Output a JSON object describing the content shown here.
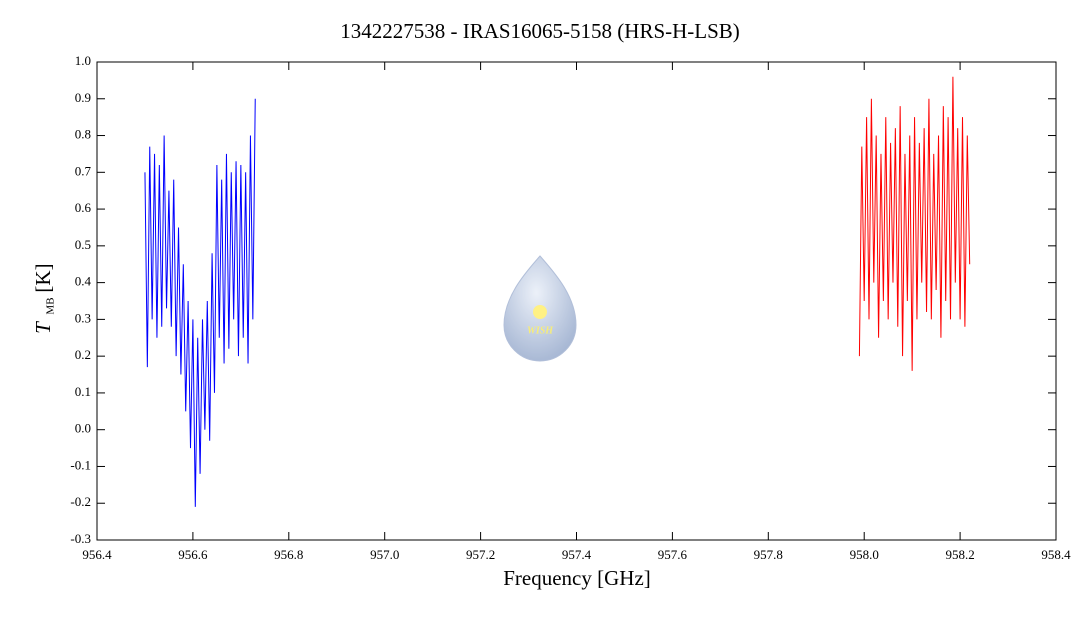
{
  "chart_data": {
    "type": "line",
    "title": "1342227538 - IRAS16065-5158 (HRS-H-LSB)",
    "x_label": "Frequency [GHz]",
    "y_label": {
      "symbol": "T",
      "subscript": "MB",
      "unit": "[K]"
    },
    "logo_text": "WISH",
    "xlim": [
      956.4,
      958.4
    ],
    "xticks": [
      956.4,
      956.6,
      956.8,
      {
        "value": 957,
        "label": "957.0"
      },
      957.2,
      957.4,
      957.6,
      957.8,
      {
        "value": 958,
        "label": "958.0"
      },
      958.2,
      958.4
    ],
    "ylim": [
      -0.3,
      1.0
    ],
    "yticks": [
      -0.3,
      -0.2,
      -0.1,
      {
        "value": 0,
        "label": "0.0"
      },
      0.1,
      0.2,
      0.3,
      0.4,
      0.5,
      0.6,
      0.7,
      0.8,
      0.9,
      {
        "value": 1,
        "label": "1.0"
      }
    ],
    "series": [
      {
        "color": "#0000ff",
        "x": [
          956.5,
          956.505,
          956.51,
          956.515,
          956.52,
          956.525,
          956.53,
          956.535,
          956.54,
          956.545,
          956.55,
          956.555,
          956.56,
          956.565,
          956.57,
          956.575,
          956.58,
          956.585,
          956.59,
          956.595,
          956.6,
          956.605,
          956.61,
          956.615,
          956.62,
          956.625,
          956.63,
          956.635,
          956.64,
          956.645,
          956.65,
          956.655,
          956.66,
          956.665,
          956.67,
          956.675,
          956.68,
          956.685,
          956.69,
          956.695,
          956.7,
          956.705,
          956.71,
          956.715,
          956.72,
          956.725,
          956.73
        ],
        "values": [
          0.7,
          0.17,
          0.77,
          0.3,
          0.75,
          0.25,
          0.72,
          0.28,
          0.8,
          0.33,
          0.65,
          0.28,
          0.68,
          0.2,
          0.55,
          0.15,
          0.45,
          0.05,
          0.35,
          -0.05,
          0.3,
          -0.21,
          0.25,
          -0.12,
          0.3,
          0.0,
          0.35,
          -0.03,
          0.48,
          0.1,
          0.72,
          0.25,
          0.68,
          0.18,
          0.75,
          0.22,
          0.7,
          0.3,
          0.73,
          0.2,
          0.72,
          0.25,
          0.7,
          0.18,
          0.8,
          0.3,
          0.9
        ]
      },
      {
        "color": "#ff0000",
        "x": [
          957.99,
          957.995,
          958.0,
          958.005,
          958.01,
          958.015,
          958.02,
          958.025,
          958.03,
          958.035,
          958.04,
          958.045,
          958.05,
          958.055,
          958.06,
          958.065,
          958.07,
          958.075,
          958.08,
          958.085,
          958.09,
          958.095,
          958.1,
          958.105,
          958.11,
          958.115,
          958.12,
          958.125,
          958.13,
          958.135,
          958.14,
          958.145,
          958.15,
          958.155,
          958.16,
          958.165,
          958.17,
          958.175,
          958.18,
          958.185,
          958.19,
          958.195,
          958.2,
          958.205,
          958.21,
          958.215,
          958.22
        ],
        "values": [
          0.2,
          0.77,
          0.35,
          0.85,
          0.3,
          0.9,
          0.4,
          0.8,
          0.25,
          0.75,
          0.35,
          0.85,
          0.3,
          0.78,
          0.4,
          0.82,
          0.28,
          0.88,
          0.2,
          0.75,
          0.35,
          0.8,
          0.16,
          0.85,
          0.3,
          0.78,
          0.4,
          0.82,
          0.32,
          0.9,
          0.3,
          0.75,
          0.38,
          0.8,
          0.25,
          0.88,
          0.35,
          0.85,
          0.3,
          0.96,
          0.4,
          0.82,
          0.3,
          0.85,
          0.28,
          0.8,
          0.45
        ]
      }
    ]
  }
}
